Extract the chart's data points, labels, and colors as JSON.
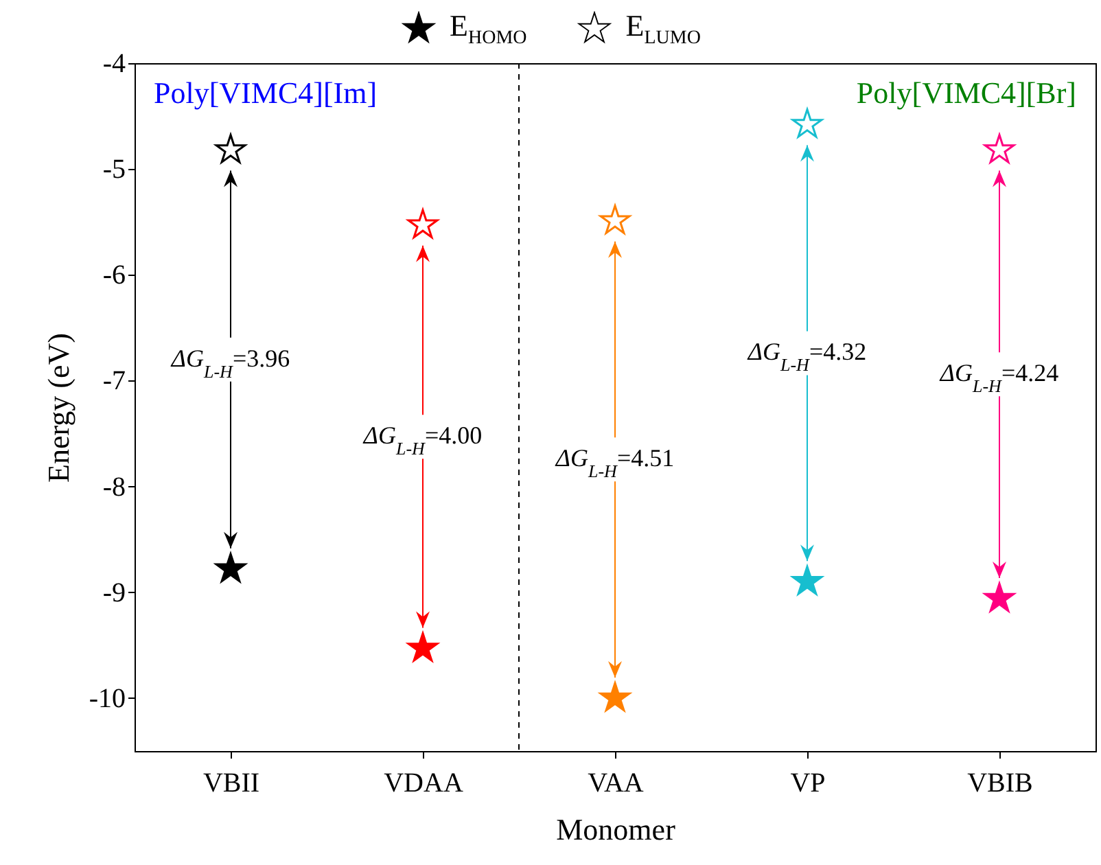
{
  "chart_data": {
    "type": "scatter",
    "xlabel": "Monomer",
    "ylabel": "Energy (eV)",
    "categories": [
      "VBII",
      "VDAA",
      "VAA",
      "VP",
      "VBIB"
    ],
    "series": [
      {
        "name": "E$_{HOMO}$",
        "marker": "star",
        "color": "#000000",
        "colors": [
          "#000000",
          "#ff0000",
          "#ff8000",
          "#17becf",
          "#ff0080"
        ],
        "values": [
          -8.78,
          -9.53,
          -10.0,
          -8.9,
          -9.06
        ]
      },
      {
        "name": "E$_{LUMO}$",
        "marker": "star",
        "color": "#000000",
        "colors": [
          "#000000",
          "#ff0000",
          "#ff8000",
          "#17becf",
          "#ff0080"
        ],
        "values": [
          -4.82,
          -5.53,
          -5.49,
          -4.58,
          -4.82
        ]
      }
    ],
    "ylim": [
      -10.5,
      -4
    ],
    "yticks": [
      -10,
      -9,
      -8,
      -7,
      -6,
      -5,
      -4
    ],
    "grid": false,
    "legend": "top",
    "annotations": [
      "Poly[VIMC4][Im]",
      "Poly[VIMC4][Br]",
      "ΔG$_{L-H}$=3.96",
      "ΔG$_{L-H}$=4.00",
      "ΔG$_{L-H}$=4.51",
      "ΔG$_{L-H}$=4.32",
      "ΔG$_{L-H}$=4.24"
    ]
  }
}
